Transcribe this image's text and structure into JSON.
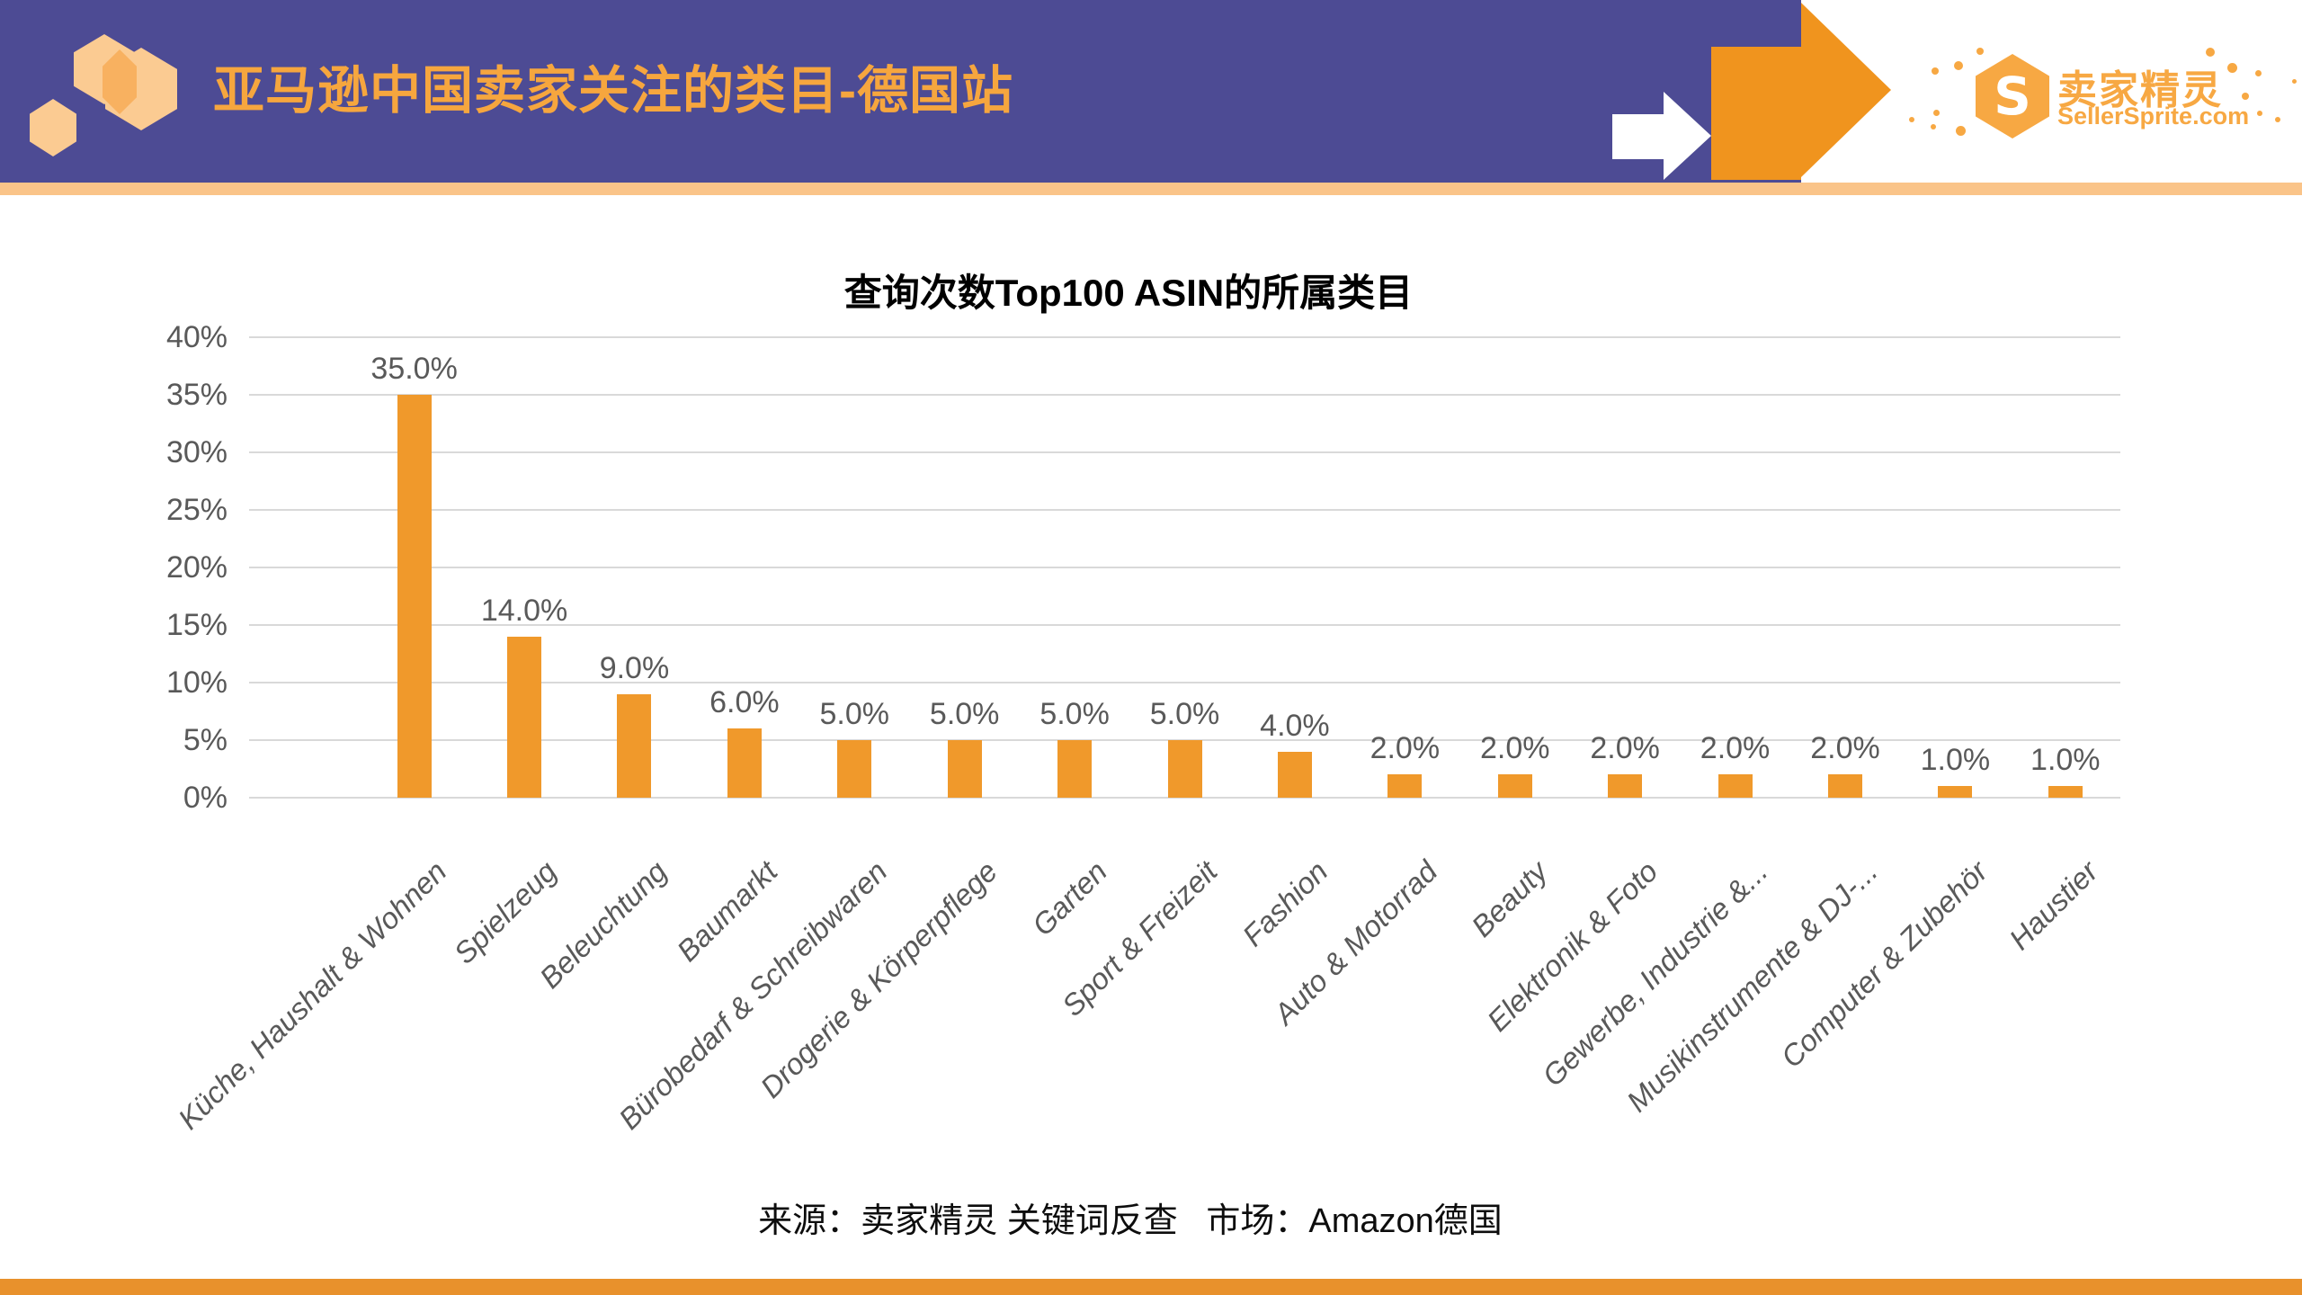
{
  "header": {
    "title": "亚马逊中国卖家关注的类目-德国站",
    "brand": {
      "logo_letter": "S",
      "name_cn": "卖家精灵",
      "domain": "SellerSprite.com"
    }
  },
  "chart_data": {
    "type": "bar",
    "title": "查询次数Top100 ASIN的所属类目",
    "categories": [
      "Küche, Haushalt & Wohnen",
      "Spielzeug",
      "Beleuchtung",
      "Baumarkt",
      "Bürobedarf & Schreibwaren",
      "Drogerie & Körperpflege",
      "Garten",
      "Sport & Freizeit",
      "Fashion",
      "Auto & Motorrad",
      "Beauty",
      "Elektronik & Foto",
      "Gewerbe, Industrie &...",
      "Musikinstrumente & DJ-...",
      "Computer & Zubehör",
      "Haustier"
    ],
    "values": [
      35,
      14,
      9,
      6,
      5,
      5,
      5,
      5,
      4,
      2,
      2,
      2,
      2,
      2,
      1,
      1
    ],
    "bar_labels": [
      "35.0%",
      "14.0%",
      "9.0%",
      "6.0%",
      "5.0%",
      "5.0%",
      "5.0%",
      "5.0%",
      "4.0%",
      "2.0%",
      "2.0%",
      "2.0%",
      "2.0%",
      "2.0%",
      "1.0%",
      "1.0%"
    ],
    "y_ticks": [
      "40%",
      "35%",
      "30%",
      "25%",
      "20%",
      "15%",
      "10%",
      "5%",
      "0%"
    ],
    "ylim": [
      0,
      40
    ],
    "xlabel": "",
    "ylabel": "",
    "grid": true,
    "legend_position": "none"
  },
  "footer": {
    "source": "来源：卖家精灵 关键词反查   市场：Amazon德国"
  },
  "colors": {
    "band_purple": "#4D4B94",
    "header_title_orange": "#F6A63E",
    "arrow_orange": "#F0941E",
    "strip_orange": "#FAC489",
    "bottom_bar_orange": "#E8912C",
    "bar_orange": "#F0992B",
    "logo_orange": "#F7A843",
    "hex_light_orange": "#FBCB92",
    "hex_overlap_orange": "#F8B160",
    "grid_gray": "#D9D9D9",
    "axis_text_gray": "#595959"
  }
}
